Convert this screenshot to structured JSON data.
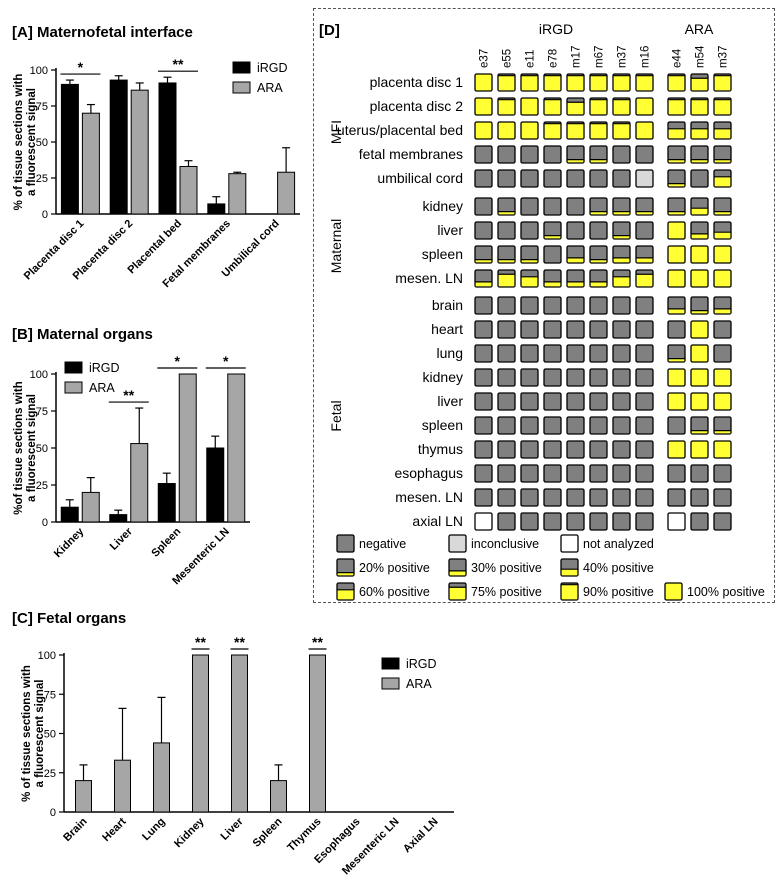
{
  "colors": {
    "iRGD": "#000000",
    "ARA": "#a6a6a6",
    "negative": "#808080",
    "positive": "#ffff33",
    "inconclusive": "#d9d9d9",
    "not_analyzed": "#ffffff"
  },
  "panelA": {
    "label": "[A] Maternofetal interface",
    "ylabel_line1": "% of tissue sections with",
    "ylabel_line2": "a fluorescent signal",
    "legend": [
      "iRGD",
      "ARA"
    ],
    "chart_data": {
      "type": "bar",
      "categories": [
        "Placenta disc 1",
        "Placenta disc 2",
        "Placental bed",
        "Fetal membranes",
        "Umbilical cord"
      ],
      "series": [
        {
          "name": "iRGD",
          "values": [
            90,
            93,
            91,
            7,
            0
          ],
          "errors": [
            3,
            3,
            4,
            5,
            0
          ]
        },
        {
          "name": "ARA",
          "values": [
            70,
            86,
            33,
            28,
            29
          ],
          "errors": [
            6,
            5,
            4,
            1,
            17
          ]
        }
      ],
      "yticks": [
        0,
        25,
        50,
        75,
        100
      ],
      "ylim": [
        0,
        100
      ],
      "significance": [
        {
          "category": 0,
          "label": "*"
        },
        {
          "category": 2,
          "label": "**"
        }
      ]
    }
  },
  "panelB": {
    "label": "[B] Maternal organs",
    "ylabel_line1": "%of tissue sections with",
    "ylabel_line2": "a fluorescent signal",
    "legend": [
      "iRGD",
      "ARA"
    ],
    "chart_data": {
      "type": "bar",
      "categories": [
        "Kidney",
        "Liver",
        "Spleen",
        "Mesenteric LN"
      ],
      "series": [
        {
          "name": "iRGD",
          "values": [
            10,
            5,
            26,
            50
          ],
          "errors": [
            5,
            3,
            7,
            8
          ]
        },
        {
          "name": "ARA",
          "values": [
            20,
            53,
            100,
            100
          ],
          "errors": [
            10,
            24,
            0,
            0
          ]
        }
      ],
      "yticks": [
        0,
        25,
        50,
        75,
        100
      ],
      "ylim": [
        0,
        100
      ],
      "significance": [
        {
          "category": 1,
          "label": "**"
        },
        {
          "category": 2,
          "label": "*"
        },
        {
          "category": 3,
          "label": "*"
        }
      ]
    }
  },
  "panelC": {
    "label": "[C] Fetal organs",
    "ylabel_line1": "% of tissue sections with",
    "ylabel_line2": "a fluorescent signal",
    "legend": [
      "iRGD",
      "ARA"
    ],
    "chart_data": {
      "type": "bar",
      "categories": [
        "Brain",
        "Heart",
        "Lung",
        "Kidney",
        "Liver",
        "Spleen",
        "Thymus",
        "Esophagus",
        "Mesenteric LN",
        "Axial LN"
      ],
      "series": [
        {
          "name": "ARA",
          "values": [
            20,
            33,
            44,
            100,
            100,
            20,
            100,
            0,
            0,
            0
          ],
          "errors": [
            10,
            33,
            29,
            0,
            0,
            10,
            0,
            0,
            0,
            0
          ]
        }
      ],
      "yticks": [
        0,
        25,
        50,
        75,
        100
      ],
      "ylim": [
        0,
        100
      ],
      "significance": [
        {
          "category": 3,
          "label": "**"
        },
        {
          "category": 4,
          "label": "**"
        },
        {
          "category": 6,
          "label": "**"
        }
      ]
    }
  },
  "panelD": {
    "label": "[D]",
    "group_iRGD": "iRGD",
    "group_ARA": "ARA",
    "section_MFI": "MFI",
    "section_Maternal": "Maternal",
    "section_Fetal": "Fetal",
    "chart_data": {
      "type": "heatmap",
      "columns": [
        "e37",
        "e55",
        "e11",
        "e78",
        "m17",
        "m67",
        "m37",
        "m16",
        "e44",
        "m54",
        "m37"
      ],
      "rows": [
        {
          "label": "placenta disc 1",
          "section": "MFI",
          "values": [
            100,
            90,
            90,
            90,
            90,
            90,
            90,
            90,
            90,
            75,
            90
          ]
        },
        {
          "label": "placenta disc 2",
          "section": "MFI",
          "values": [
            100,
            90,
            100,
            90,
            75,
            90,
            90,
            100,
            90,
            90,
            90
          ]
        },
        {
          "label": "uterus/placental bed",
          "section": "MFI",
          "values": [
            100,
            100,
            100,
            90,
            90,
            90,
            90,
            100,
            60,
            60,
            60
          ]
        },
        {
          "label": "fetal membranes",
          "section": "MFI",
          "values": [
            0,
            0,
            0,
            0,
            20,
            20,
            0,
            0,
            20,
            20,
            20
          ]
        },
        {
          "label": "umbilical cord",
          "section": "MFI",
          "values": [
            0,
            0,
            0,
            0,
            0,
            0,
            0,
            "inc",
            20,
            0,
            60
          ]
        },
        {
          "label": "kidney",
          "section": "Maternal",
          "values": [
            0,
            20,
            0,
            0,
            0,
            20,
            20,
            20,
            20,
            40,
            20
          ]
        },
        {
          "label": "liver",
          "section": "Maternal",
          "values": [
            0,
            0,
            0,
            20,
            0,
            0,
            20,
            0,
            100,
            30,
            40
          ]
        },
        {
          "label": "spleen",
          "section": "Maternal",
          "values": [
            20,
            20,
            20,
            0,
            30,
            20,
            30,
            30,
            100,
            100,
            100
          ]
        },
        {
          "label": "mesen. LN",
          "section": "Maternal",
          "values": [
            30,
            75,
            60,
            30,
            30,
            30,
            60,
            75,
            100,
            100,
            100
          ]
        },
        {
          "label": "brain",
          "section": "Fetal",
          "values": [
            0,
            0,
            0,
            0,
            0,
            0,
            0,
            0,
            30,
            20,
            30
          ]
        },
        {
          "label": "heart",
          "section": "Fetal",
          "values": [
            0,
            0,
            0,
            0,
            0,
            0,
            0,
            0,
            0,
            100,
            0
          ]
        },
        {
          "label": "lung",
          "section": "Fetal",
          "values": [
            0,
            0,
            0,
            0,
            0,
            0,
            0,
            0,
            20,
            100,
            0
          ]
        },
        {
          "label": "kidney",
          "section": "Fetal",
          "values": [
            0,
            0,
            0,
            0,
            0,
            0,
            0,
            0,
            100,
            100,
            100
          ]
        },
        {
          "label": "liver",
          "section": "Fetal",
          "values": [
            0,
            0,
            0,
            0,
            0,
            0,
            0,
            0,
            100,
            100,
            100
          ]
        },
        {
          "label": "spleen",
          "section": "Fetal",
          "values": [
            0,
            0,
            0,
            0,
            0,
            0,
            0,
            0,
            0,
            20,
            20
          ]
        },
        {
          "label": "thymus",
          "section": "Fetal",
          "values": [
            0,
            0,
            0,
            0,
            0,
            0,
            0,
            0,
            100,
            100,
            100
          ]
        },
        {
          "label": "esophagus",
          "section": "Fetal",
          "values": [
            0,
            0,
            0,
            0,
            0,
            0,
            0,
            0,
            0,
            0,
            0
          ]
        },
        {
          "label": "mesen. LN",
          "section": "Fetal",
          "values": [
            0,
            0,
            0,
            0,
            0,
            0,
            0,
            0,
            0,
            0,
            0
          ]
        },
        {
          "label": "axial LN",
          "section": "Fetal",
          "values": [
            "na",
            0,
            0,
            0,
            0,
            0,
            0,
            0,
            "na",
            0,
            0
          ]
        }
      ]
    },
    "legend": [
      {
        "label": "negative",
        "value": 0
      },
      {
        "label": "inconclusive",
        "value": "inc"
      },
      {
        "label": "not analyzed",
        "value": "na"
      },
      {
        "label": "20% positive",
        "value": 20
      },
      {
        "label": "30% positive",
        "value": 30
      },
      {
        "label": "40% positive",
        "value": 40
      },
      {
        "label": "60% positive",
        "value": 60
      },
      {
        "label": "75% positive",
        "value": 75
      },
      {
        "label": "90% positive",
        "value": 90
      },
      {
        "label": "100% positive",
        "value": 100
      }
    ]
  }
}
